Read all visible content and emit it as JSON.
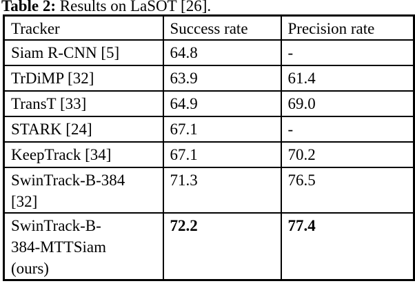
{
  "caption": {
    "label": "Table 2:",
    "text": "Results on LaSOT [26]."
  },
  "table": {
    "headers": {
      "tracker": "Tracker",
      "success": "Success rate",
      "precision": "Precision rate"
    },
    "rows": [
      {
        "tracker": "Siam R-CNN [5]",
        "success": "64.8",
        "precision": "-"
      },
      {
        "tracker": "TrDiMP [32]",
        "success": "63.9",
        "precision": "61.4"
      },
      {
        "tracker": "TransT [33]",
        "success": "64.9",
        "precision": "69.0"
      },
      {
        "tracker": "STARK [24]",
        "success": "67.1",
        "precision": "-"
      },
      {
        "tracker": "KeepTrack [34]",
        "success": "67.1",
        "precision": "70.2"
      },
      {
        "tracker": "SwinTrack-B-384\n[32]",
        "success": "71.3",
        "precision": "76.5"
      },
      {
        "tracker": "SwinTrack-B-\n384-MTTSiam\n(ours)",
        "success": "72.2",
        "precision": "77.4"
      }
    ]
  },
  "colors": {
    "text": "#000000",
    "background": "#ffffff",
    "border": "#000000"
  }
}
